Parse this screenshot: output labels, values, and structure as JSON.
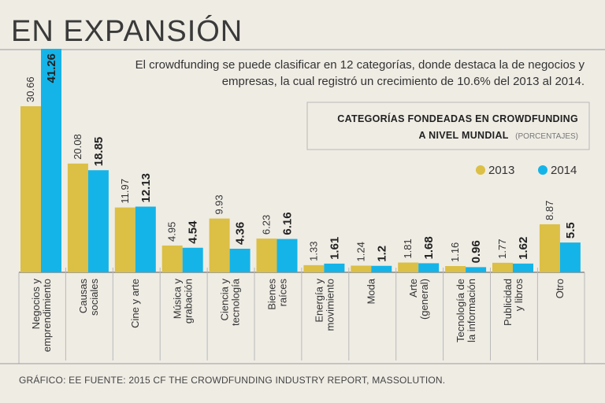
{
  "header": {
    "title": "EN EXPANSIÓN",
    "subtitle_line1": "El crowdfunding se puede clasificar en 12 categorías, donde destaca la de negocios y",
    "subtitle_line2": "empresas, la cual registró un crecimiento de 10.6% del 2013 al 2014."
  },
  "box": {
    "line1": "CATEGORÍAS FONDEADAS EN CROWDFUNDING",
    "line2": "A NIVEL MUNDIAL",
    "units": "(PORCENTAJES)"
  },
  "footer": {
    "text": "GRÁFICO: EE  FUENTE: 2015 CF THE CROWDFUNDING INDUSTRY REPORT, MASSOLUTION."
  },
  "chart_data": {
    "type": "bar",
    "title": "CATEGORÍAS FONDEADAS EN CROWDFUNDING A NIVEL MUNDIAL",
    "ylabel": "(PORCENTAJES)",
    "ylim": [
      0,
      41.26
    ],
    "grid": false,
    "legend_position": "top-right",
    "categories": [
      [
        "Negocios y",
        "emprendimiento"
      ],
      [
        "Causas",
        "sociales"
      ],
      [
        "Cine y arte"
      ],
      [
        "Música y",
        "grabación"
      ],
      [
        "Ciencia y",
        "tecnología"
      ],
      [
        "Bienes",
        "raíces"
      ],
      [
        "Energía y",
        "movimiento"
      ],
      [
        "Moda"
      ],
      [
        "Arte",
        "(general)"
      ],
      [
        "Tecnología de",
        "la información"
      ],
      [
        "Publicidad",
        "y libros"
      ],
      [
        "Otro"
      ]
    ],
    "series": [
      {
        "name": "2013",
        "color": "#dcbf45",
        "values": [
          30.66,
          20.08,
          11.97,
          4.95,
          9.93,
          6.23,
          1.33,
          1.24,
          1.81,
          1.16,
          1.77,
          8.87
        ],
        "labels": [
          "30.66",
          "20.08",
          "11.97",
          "4.95",
          "9.93",
          "6.23",
          "1.33",
          "1.24",
          "1.81",
          "1.16",
          "1.77",
          "8.87"
        ]
      },
      {
        "name": "2014",
        "color": "#14b4e8",
        "values": [
          41.26,
          18.85,
          12.13,
          4.54,
          4.36,
          6.16,
          1.61,
          1.2,
          1.68,
          0.96,
          1.62,
          5.5
        ],
        "labels": [
          "41.26",
          "18.85",
          "12.13",
          "4.54",
          "4.36",
          "6.16",
          "1.61",
          "1.2",
          "1.68",
          "0.96",
          "1.62",
          "5.5"
        ]
      }
    ]
  }
}
